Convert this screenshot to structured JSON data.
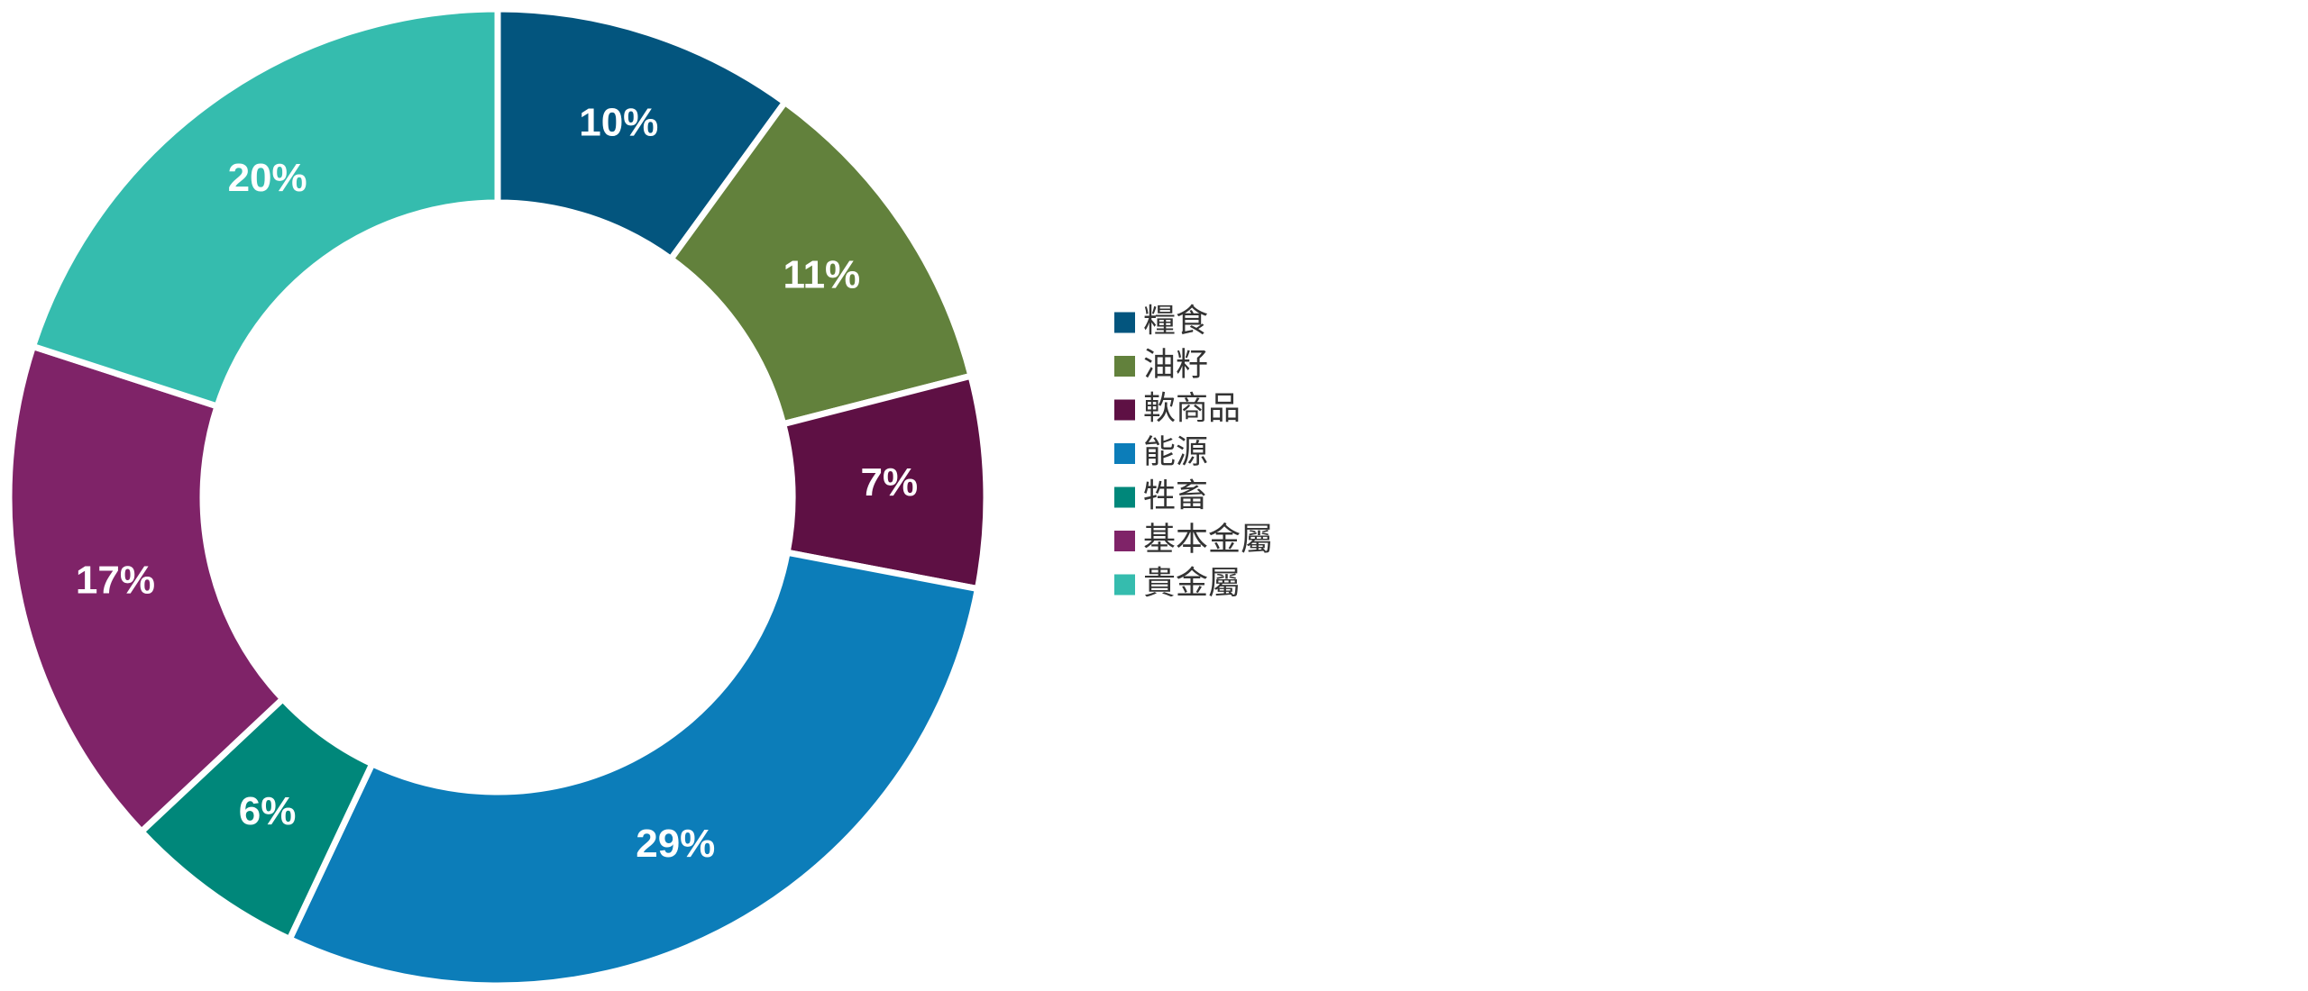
{
  "chart_data": {
    "type": "donut",
    "categories": [
      "糧食",
      "油籽",
      "軟商品",
      "能源",
      "牲畜",
      "基本金屬",
      "貴金屬"
    ],
    "values": [
      10,
      11,
      7,
      29,
      6,
      17,
      20
    ],
    "value_labels": [
      "10%",
      "11%",
      "7%",
      "29%",
      "6%",
      "17%",
      "20%"
    ],
    "colors": [
      "#03557e",
      "#62813c",
      "#5e1044",
      "#0c7db9",
      "#00877a",
      "#7f2368",
      "#35bcae"
    ],
    "legend": "right"
  }
}
